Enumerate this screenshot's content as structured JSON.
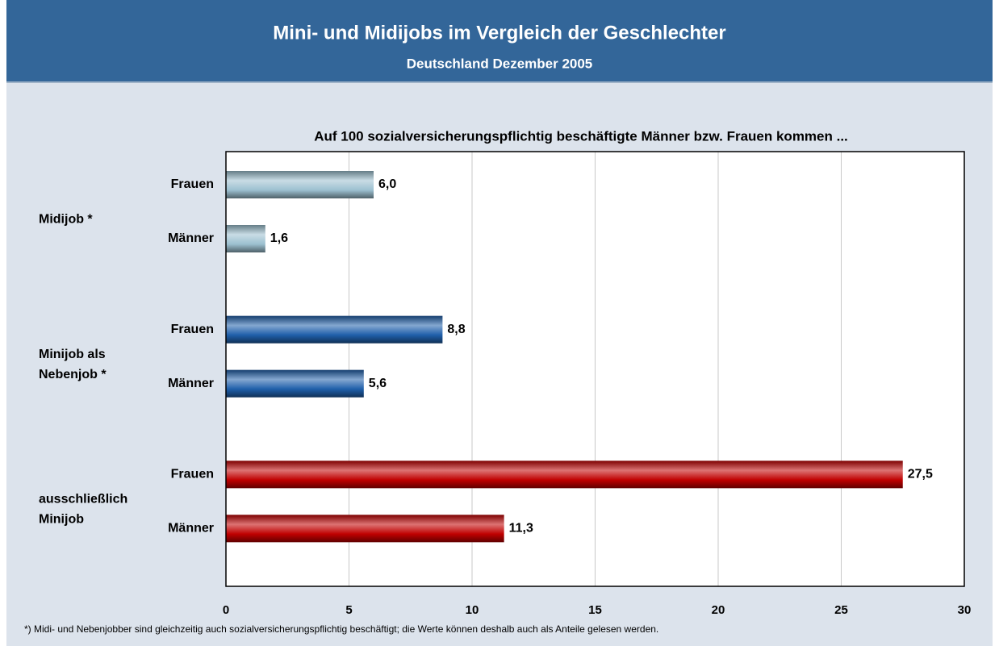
{
  "chart_data": {
    "type": "bar",
    "orientation": "horizontal",
    "title": "Mini- und Midijobs im Vergleich der Geschlechter",
    "subtitle": "Deutschland Dezember 2005",
    "plot_title": "Auf 100 sozialversicherungspflichtig beschäftigte Männer bzw. Frauen kommen ...",
    "footnote": "*) Midi- und Nebenjobber sind gleichzeitig auch sozialversicherungspflichtig beschäftigt; die Werte können deshalb auch als Anteile gelesen werden.",
    "groups": [
      {
        "name": [
          "Midijob *"
        ],
        "color": "#9cc0d0",
        "categories": [
          "Frauen",
          "Männer"
        ],
        "values": [
          6.0,
          1.6
        ],
        "value_labels": [
          "6,0",
          "1,6"
        ]
      },
      {
        "name": [
          "Minijob als",
          "Nebenjob *"
        ],
        "color": "#1f5faa",
        "categories": [
          "Frauen",
          "Männer"
        ],
        "values": [
          8.8,
          5.6
        ],
        "value_labels": [
          "8,8",
          "5,6"
        ]
      },
      {
        "name": [
          "ausschließlich",
          "Minijob"
        ],
        "color": "#c00000",
        "categories": [
          "Frauen",
          "Männer"
        ],
        "values": [
          27.5,
          11.3
        ],
        "value_labels": [
          "27,5",
          "11,3"
        ]
      }
    ],
    "xlim": [
      0,
      30
    ],
    "xticks": [
      0,
      5,
      10,
      15,
      20,
      25,
      30
    ],
    "grid": true
  }
}
